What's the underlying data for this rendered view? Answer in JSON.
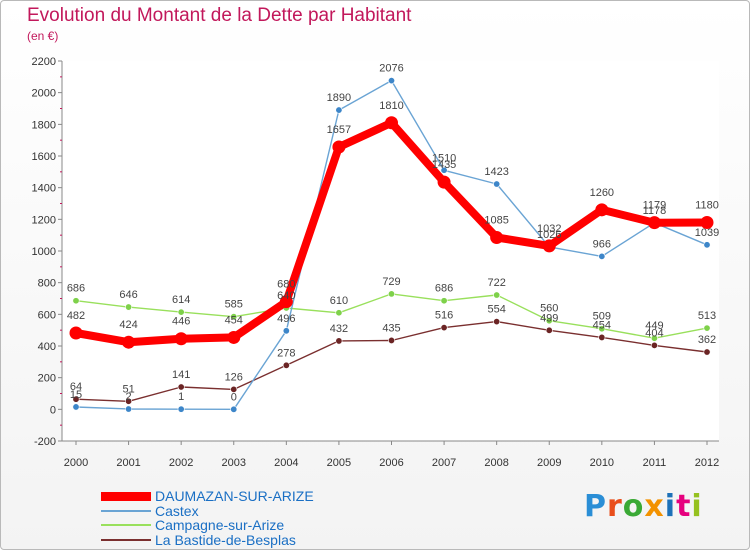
{
  "header": {
    "title": "Evolution du Montant de la Dette par Habitant",
    "subtitle": "(en €)"
  },
  "brand": {
    "text": "Proxiti",
    "colors": [
      "#2a8ed6",
      "#e94e1b",
      "#3aa935",
      "#f39200",
      "#1d71b8",
      "#e6007e",
      "#95c11f"
    ]
  },
  "chart_data": {
    "type": "line",
    "title": "Evolution du Montant de la Dette par Habitant",
    "subtitle": "(en €)",
    "xlabel": "",
    "ylabel": "",
    "categories": [
      "2000",
      "2001",
      "2002",
      "2003",
      "2004",
      "2005",
      "2006",
      "2007",
      "2008",
      "2009",
      "2010",
      "2011",
      "2012"
    ],
    "ylim": [
      -200,
      2200
    ],
    "yticks": [
      "-200",
      "0",
      "200",
      "400",
      "600",
      "800",
      "1000",
      "1200",
      "1400",
      "1600",
      "1800",
      "2000",
      "2200"
    ],
    "grid": false,
    "legend_position": "bottom-left",
    "series": [
      {
        "name": "DAUMAZAN-SUR-ARIZE",
        "color": "#ff0000",
        "values": [
          482,
          424,
          446,
          454,
          680,
          1657,
          1810,
          1435,
          1085,
          1032,
          1260,
          1179,
          1180
        ],
        "labels": [
          "482",
          "424",
          "446",
          "454",
          "680",
          "1657",
          "1810",
          "1435",
          "1085",
          "1032",
          "1260",
          "1179",
          "1180"
        ]
      },
      {
        "name": "Castex",
        "color": "#6aa4d4",
        "values": [
          15,
          2,
          1,
          0,
          496,
          1890,
          2076,
          1510,
          1423,
          1026,
          966,
          1178,
          1039
        ],
        "labels": [
          "15",
          "2",
          "1",
          "0",
          "496",
          "1890",
          "2076",
          "1510",
          "1423",
          "1026",
          "966",
          "1178",
          "1039"
        ]
      },
      {
        "name": "Campagne-sur-Arize",
        "color": "#99e05c",
        "values": [
          686,
          646,
          614,
          585,
          640,
          610,
          729,
          686,
          722,
          560,
          509,
          449,
          513
        ],
        "labels": [
          "686",
          "646",
          "614",
          "585",
          "640",
          "610",
          "729",
          "686",
          "722",
          "560",
          "509",
          "449",
          "513"
        ]
      },
      {
        "name": "La Bastide-de-Besplas",
        "color": "#7a2f2f",
        "values": [
          64,
          51,
          141,
          126,
          278,
          432,
          435,
          516,
          554,
          499,
          454,
          404,
          362
        ],
        "labels": [
          "64",
          "51",
          "141",
          "126",
          "278",
          "432",
          "435",
          "516",
          "554",
          "499",
          "454",
          "404",
          "362"
        ]
      }
    ]
  }
}
